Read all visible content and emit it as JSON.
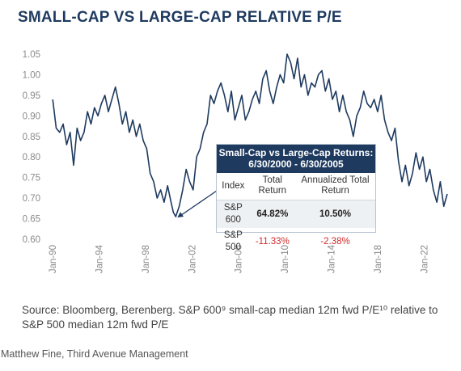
{
  "title": "SMALL-CAP VS LARGE-CAP RELATIVE P/E",
  "source": "Source: Bloomberg, Berenberg. S&P 600⁹ small-cap median 12m fwd P/E¹⁰ relative to S&P 500 median 12m fwd P/E",
  "credit": "Matthew Fine, Third Avenue Management",
  "colors": {
    "title": "#1e3a5f",
    "line": "#1e3a5f",
    "negative": "#d42a2a",
    "inset_header": "#1e3a5f"
  },
  "chart_data": {
    "type": "line",
    "title": "SMALL-CAP VS LARGE-CAP RELATIVE P/E",
    "xlabel": "",
    "ylabel": "",
    "ylim": [
      0.6,
      1.05
    ],
    "yticks": [
      "0.60",
      "0.65",
      "0.70",
      "0.75",
      "0.80",
      "0.85",
      "0.90",
      "0.95",
      "1.00",
      "1.05"
    ],
    "xticks": [
      "Jan-90",
      "Jan-94",
      "Jan-98",
      "Jan-02",
      "Jan-06",
      "Jan-10",
      "Jan-14",
      "Jan-18",
      "Jan-22"
    ],
    "grid": false,
    "series": [
      {
        "x": [
          1990.0,
          1990.3,
          1990.6,
          1990.9,
          1991.2,
          1991.5,
          1991.8,
          1992.1,
          1992.4,
          1992.7,
          1993.0,
          1993.3,
          1993.6,
          1993.9,
          1994.2,
          1994.5,
          1994.8,
          1995.1,
          1995.4,
          1995.7,
          1996.0,
          1996.3,
          1996.6,
          1996.9,
          1997.2,
          1997.5,
          1997.8,
          1998.1,
          1998.4,
          1998.7,
          1999.0,
          1999.3,
          1999.6,
          1999.9,
          2000.2,
          2000.4,
          2000.6,
          2000.9,
          2001.2,
          2001.5,
          2001.8,
          2002.1,
          2002.4,
          2002.7,
          2003.0,
          2003.3,
          2003.6,
          2003.9,
          2004.2,
          2004.5,
          2004.8,
          2005.1,
          2005.4,
          2005.7,
          2006.0,
          2006.3,
          2006.6,
          2006.9,
          2007.2,
          2007.5,
          2007.8,
          2008.1,
          2008.4,
          2008.7,
          2009.0,
          2009.3,
          2009.6,
          2009.9,
          2010.2,
          2010.5,
          2010.8,
          2011.1,
          2011.4,
          2011.7,
          2012.0,
          2012.3,
          2012.6,
          2012.9,
          2013.2,
          2013.5,
          2013.8,
          2014.1,
          2014.4,
          2014.7,
          2015.0,
          2015.3,
          2015.6,
          2015.9,
          2016.2,
          2016.5,
          2016.8,
          2017.1,
          2017.4,
          2017.7,
          2018.0,
          2018.3,
          2018.6,
          2018.9,
          2019.2,
          2019.5,
          2019.8,
          2020.1,
          2020.4,
          2020.7,
          2021.0,
          2021.3,
          2021.6,
          2021.9,
          2022.2,
          2022.5,
          2022.8,
          2023.1,
          2023.4,
          2023.7,
          2024.0
        ],
        "y": [
          0.94,
          0.87,
          0.86,
          0.88,
          0.83,
          0.86,
          0.78,
          0.87,
          0.84,
          0.86,
          0.91,
          0.88,
          0.92,
          0.9,
          0.93,
          0.95,
          0.91,
          0.94,
          0.97,
          0.93,
          0.88,
          0.91,
          0.86,
          0.89,
          0.85,
          0.88,
          0.84,
          0.82,
          0.76,
          0.74,
          0.7,
          0.72,
          0.69,
          0.73,
          0.69,
          0.665,
          0.655,
          0.68,
          0.72,
          0.77,
          0.74,
          0.72,
          0.8,
          0.82,
          0.86,
          0.88,
          0.95,
          0.93,
          0.96,
          0.98,
          0.95,
          0.91,
          0.96,
          0.89,
          0.92,
          0.95,
          0.89,
          0.91,
          0.94,
          0.96,
          0.93,
          0.99,
          1.01,
          0.96,
          0.93,
          0.97,
          1.0,
          0.98,
          1.05,
          1.03,
          0.99,
          1.04,
          0.97,
          1.0,
          0.95,
          0.98,
          0.97,
          1.0,
          1.01,
          0.96,
          0.99,
          0.94,
          0.96,
          0.91,
          0.95,
          0.91,
          0.89,
          0.85,
          0.9,
          0.92,
          0.96,
          0.93,
          0.92,
          0.94,
          0.91,
          0.95,
          0.89,
          0.86,
          0.84,
          0.87,
          0.79,
          0.74,
          0.78,
          0.73,
          0.76,
          0.81,
          0.77,
          0.8,
          0.74,
          0.77,
          0.72,
          0.69,
          0.74,
          0.68,
          0.71
        ]
      }
    ],
    "annotation": {
      "title": "Small-Cap vs Large-Cap Returns: 6/30/2000 - 6/30/2005",
      "arrow_target": {
        "x": 2000.6,
        "y": 0.655
      },
      "columns": [
        "Index",
        "Total Return",
        "Annualized Total Return"
      ],
      "rows": [
        {
          "index": "S&P 600",
          "total": "64.82%",
          "annualized": "10.50%"
        },
        {
          "index": "S&P 500",
          "total": "-11.33%",
          "annualized": "-2.38%"
        }
      ]
    }
  }
}
